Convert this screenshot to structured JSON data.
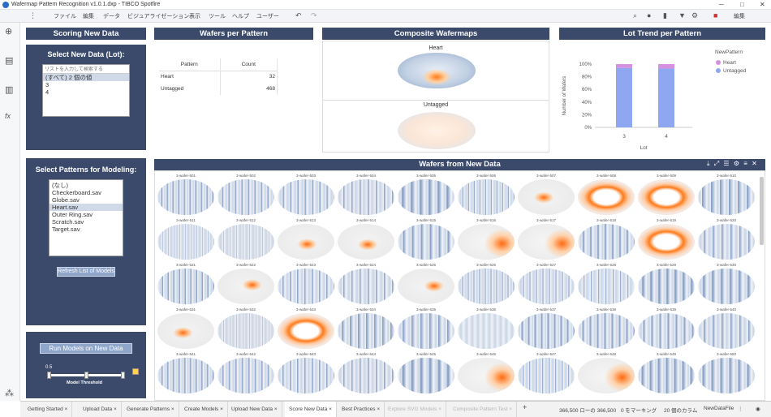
{
  "window": {
    "title": "Wafermap Pattern Recognition v1.0.1.dxp - TIBCO Spotfire"
  },
  "menu": [
    "ファイル",
    "編集",
    "データ",
    "ビジュアライゼーション",
    "表示",
    "ツール",
    "ヘルプ",
    "ユーザー"
  ],
  "toolbar": {
    "edit_label": "編集"
  },
  "scoring": {
    "title": "Scoring New Data",
    "select_title": "Select New Data (Lot):",
    "search_placeholder": "リストを入力して検索する",
    "items": [
      "(すべて) 2 個の値",
      "3",
      "4"
    ]
  },
  "patterns": {
    "title": "Select Patterns for Modeling:",
    "items": [
      "(なし)",
      "Checkerboard.sav",
      "Globe.sav",
      "Heart.sav",
      "Outer Ring.sav",
      "Scratch.sav",
      "Target.sav"
    ],
    "refresh_label": "Refresh List of Models"
  },
  "run": {
    "button_label": "Run Models on New Data",
    "threshold_value": "0.5",
    "threshold_label": "Model Threshold",
    "threshold_fraction": 0.5
  },
  "wafers_per_pattern": {
    "title": "Wafers per Pattern",
    "col_pattern": "Pattern",
    "col_count": "Count",
    "rows": [
      {
        "pattern": "Heart",
        "count": "32"
      },
      {
        "pattern": "Untagged",
        "count": "468"
      }
    ]
  },
  "composite": {
    "title": "Composite Wafermaps",
    "heart_label": "Heart",
    "untagged_label": "Untagged"
  },
  "lot_trend": {
    "title": "Lot Trend per Pattern",
    "legend_title": "NewPattern",
    "ylabel": "Number of Wafers",
    "xlabel": "Lot",
    "colors": {
      "Heart": "#d690e0",
      "Untagged": "#8fa7f0"
    }
  },
  "chart_data": {
    "type": "bar",
    "categories": [
      "3",
      "4"
    ],
    "series": [
      {
        "name": "Heart",
        "values": [
          6,
          7
        ]
      },
      {
        "name": "Untagged",
        "values": [
          94,
          93
        ]
      }
    ],
    "ylabel": "Number of Wafers",
    "xlabel": "Lot",
    "yticks": [
      "0%",
      "20%",
      "40%",
      "60%",
      "80%",
      "100%"
    ],
    "ylim": [
      0,
      100
    ],
    "stacked": true,
    "legend": "top-right"
  },
  "wafers_new": {
    "title": "Wafers from New Data",
    "labels": [
      "3-wafer-501",
      "3-wafer-502",
      "3-wafer-503",
      "3-wafer-504",
      "3-wafer-505",
      "3-wafer-506",
      "3-wafer-507",
      "3-wafer-508",
      "3-wafer-509",
      "3-wafer-510",
      "3-wafer-511",
      "3-wafer-512",
      "3-wafer-513",
      "3-wafer-514",
      "3-wafer-515",
      "3-wafer-516",
      "3-wafer-517",
      "3-wafer-518",
      "3-wafer-519",
      "3-wafer-520",
      "3-wafer-521",
      "3-wafer-522",
      "3-wafer-523",
      "3-wafer-524",
      "3-wafer-525",
      "3-wafer-526",
      "3-wafer-527",
      "3-wafer-528",
      "3-wafer-529",
      "3-wafer-530",
      "3-wafer-531",
      "3-wafer-532",
      "3-wafer-533",
      "3-wafer-534",
      "3-wafer-535",
      "3-wafer-536",
      "3-wafer-537",
      "3-wafer-538",
      "3-wafer-539",
      "3-wafer-540",
      "3-wafer-541",
      "3-wafer-542",
      "3-wafer-543",
      "3-wafer-544",
      "3-wafer-545",
      "3-wafer-546",
      "3-wafer-547",
      "3-wafer-548",
      "3-wafer-549",
      "3-wafer-550"
    ],
    "patterns": [
      "s",
      "s",
      "s",
      "s",
      "s",
      "s",
      "c",
      "ring",
      "ring",
      "s",
      "s",
      "s",
      "c",
      "c",
      "s",
      "e",
      "e",
      "s",
      "ring",
      "s",
      "s",
      "c",
      "s",
      "s",
      "c",
      "s",
      "s",
      "s",
      "s",
      "s",
      "c",
      "s",
      "ring",
      "s",
      "s",
      "s",
      "s",
      "s",
      "s",
      "s",
      "s",
      "s",
      "s",
      "s",
      "s",
      "e",
      "s",
      "e",
      "s",
      "s"
    ]
  },
  "tabs": [
    "Getting Started",
    "Upload Data",
    "Generate Patterns",
    "Create Models",
    "Upload New Data",
    "Score New Data",
    "Best Practices",
    "Explore SVG Models",
    "Composite Pattern Test"
  ],
  "status": {
    "rows": "366,500 ローの 366,500",
    "marking": "0 をマーキング",
    "columns": "20 個のカラム",
    "table": "NewDataFile"
  }
}
